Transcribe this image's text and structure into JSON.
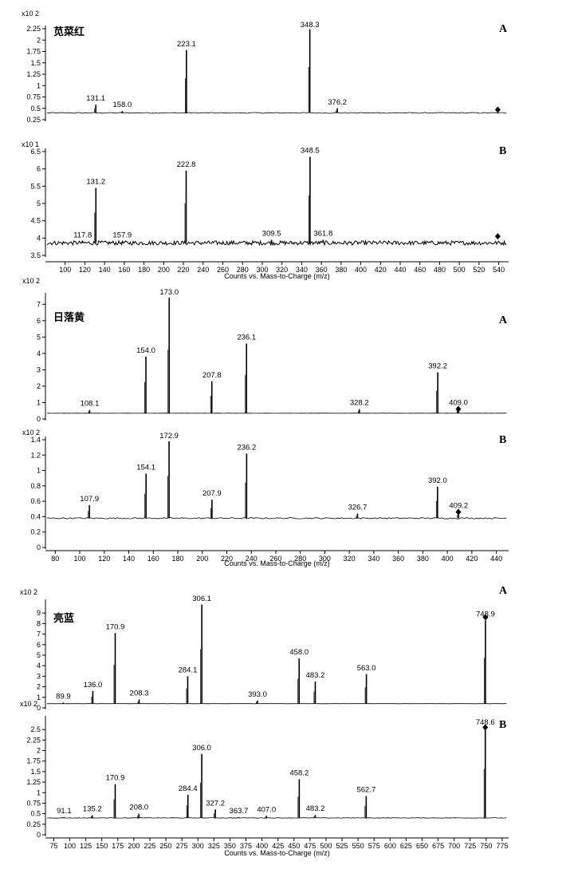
{
  "chart_data": [
    {
      "type": "bar",
      "compound": "苋菜红",
      "xlabel": "Counts vs. Mass-to-Charge (m/z)",
      "x_ticks": [
        100,
        120,
        140,
        160,
        180,
        200,
        220,
        240,
        260,
        280,
        300,
        320,
        340,
        360,
        380,
        400,
        420,
        440,
        460,
        480,
        500,
        520,
        540
      ],
      "xlim": [
        80,
        550
      ],
      "panels": [
        {
          "label": "A",
          "exponent_label": "x10 2",
          "ylim": [
            0.25,
            2.25
          ],
          "y_ticks": [
            "0.25",
            "0.5",
            "0.75",
            "1",
            "1.25",
            "1.5",
            "1.75",
            "2",
            "2.25"
          ],
          "baseline": 0.4,
          "noise": 0.01,
          "peaks": [
            {
              "mz": 131.1,
              "intensity": 0.58,
              "label": "131.1"
            },
            {
              "mz": 158.0,
              "intensity": 0.44,
              "label": "158.0"
            },
            {
              "mz": 223.1,
              "intensity": 1.78,
              "label": "223.1"
            },
            {
              "mz": 348.3,
              "intensity": 2.24,
              "label": "348.3"
            },
            {
              "mz": 376.2,
              "intensity": 0.5,
              "label": "376.2"
            }
          ],
          "marker": {
            "mz": 539,
            "intensity": 0.47
          }
        },
        {
          "label": "B",
          "exponent_label": "x10 1",
          "ylim": [
            3.5,
            6.5
          ],
          "y_ticks": [
            "3.5",
            "4",
            "4.5",
            "5",
            "5.5",
            "6",
            "6.5"
          ],
          "baseline": 3.86,
          "noise": 0.06,
          "peaks": [
            {
              "mz": 117.8,
              "intensity": 3.9,
              "label": "117.8"
            },
            {
              "mz": 131.2,
              "intensity": 5.45,
              "label": "131.2"
            },
            {
              "mz": 157.9,
              "intensity": 3.9,
              "label": "157.9"
            },
            {
              "mz": 222.8,
              "intensity": 5.95,
              "label": "222.8"
            },
            {
              "mz": 309.5,
              "intensity": 3.95,
              "label": "309.5"
            },
            {
              "mz": 348.5,
              "intensity": 6.35,
              "label": "348.5"
            },
            {
              "mz": 361.8,
              "intensity": 3.95,
              "label": "361.8"
            }
          ],
          "marker": {
            "mz": 539,
            "intensity": 4.05
          }
        }
      ]
    },
    {
      "type": "bar",
      "compound": "日落黄",
      "xlabel": "Counts vs. Mass-to-Charge (m/z)",
      "x_ticks": [
        80,
        100,
        120,
        140,
        160,
        180,
        200,
        220,
        240,
        260,
        280,
        300,
        320,
        340,
        360,
        380,
        400,
        420,
        440
      ],
      "xlim": [
        72,
        450
      ],
      "panels": [
        {
          "label": "A",
          "exponent_label": "x10 2",
          "ylim": [
            0,
            7.5
          ],
          "y_ticks": [
            "0",
            "1",
            "2",
            "3",
            "4",
            "5",
            "6",
            "7"
          ],
          "baseline": 0.35,
          "noise": 0.005,
          "peaks": [
            {
              "mz": 108.1,
              "intensity": 0.55,
              "label": "108.1"
            },
            {
              "mz": 154.0,
              "intensity": 3.8,
              "label": "154.0"
            },
            {
              "mz": 173.0,
              "intensity": 7.4,
              "label": "173.0"
            },
            {
              "mz": 207.8,
              "intensity": 2.3,
              "label": "207.8"
            },
            {
              "mz": 236.1,
              "intensity": 4.6,
              "label": "236.1"
            },
            {
              "mz": 328.2,
              "intensity": 0.6,
              "label": "328.2"
            },
            {
              "mz": 392.2,
              "intensity": 2.85,
              "label": "392.2"
            },
            {
              "mz": 409.0,
              "intensity": 0.6,
              "label": "409.0"
            }
          ],
          "marker": {
            "mz": 409,
            "intensity": 0.6
          }
        },
        {
          "label": "B",
          "exponent_label": "x10 2",
          "ylim": [
            0,
            1.4
          ],
          "y_ticks": [
            "0",
            "0.2",
            "0.4",
            "0.6",
            "0.8",
            "1",
            "1.2",
            "1.4"
          ],
          "baseline": 0.38,
          "noise": 0.008,
          "peaks": [
            {
              "mz": 107.9,
              "intensity": 0.55,
              "label": "107.9"
            },
            {
              "mz": 154.1,
              "intensity": 0.96,
              "label": "154.1"
            },
            {
              "mz": 172.9,
              "intensity": 1.38,
              "label": "172.9"
            },
            {
              "mz": 207.9,
              "intensity": 0.62,
              "label": "207.9"
            },
            {
              "mz": 236.2,
              "intensity": 1.22,
              "label": "236.2"
            },
            {
              "mz": 326.7,
              "intensity": 0.44,
              "label": "326.7"
            },
            {
              "mz": 392.0,
              "intensity": 0.79,
              "label": "392.0"
            },
            {
              "mz": 409.2,
              "intensity": 0.46,
              "label": "409.2"
            }
          ],
          "marker": {
            "mz": 409,
            "intensity": 0.46
          }
        }
      ]
    },
    {
      "type": "bar",
      "compound": "亮蓝",
      "xlabel": "Counts vs. Mass-to-Charge (m/z)",
      "x_ticks": [
        75,
        100,
        125,
        150,
        175,
        200,
        225,
        250,
        275,
        300,
        325,
        350,
        375,
        400,
        425,
        450,
        475,
        500,
        525,
        550,
        575,
        600,
        625,
        650,
        675,
        700,
        725,
        750,
        775
      ],
      "xlim": [
        62,
        785
      ],
      "panels": [
        {
          "label": "A",
          "exponent_label": "x10 2",
          "ylim": [
            0,
            10
          ],
          "y_ticks": [
            "0",
            "1",
            "2",
            "3",
            "4",
            "5",
            "6",
            "7",
            "8",
            "9"
          ],
          "baseline": 0.4,
          "noise": 0.005,
          "peaks": [
            {
              "mz": 89.9,
              "intensity": 0.5,
              "label": "89.9"
            },
            {
              "mz": 136.0,
              "intensity": 1.6,
              "label": "136.0"
            },
            {
              "mz": 170.9,
              "intensity": 7.1,
              "label": "170.9"
            },
            {
              "mz": 208.3,
              "intensity": 0.8,
              "label": "208.3"
            },
            {
              "mz": 284.1,
              "intensity": 3.0,
              "label": "284.1"
            },
            {
              "mz": 306.1,
              "intensity": 9.8,
              "label": "306.1"
            },
            {
              "mz": 393.0,
              "intensity": 0.7,
              "label": "393.0"
            },
            {
              "mz": 458.0,
              "intensity": 4.7,
              "label": "458.0"
            },
            {
              "mz": 483.2,
              "intensity": 2.5,
              "label": "483.2"
            },
            {
              "mz": 563.0,
              "intensity": 3.2,
              "label": "563.0"
            },
            {
              "mz": 748.9,
              "intensity": 8.3,
              "label": "748.9"
            }
          ],
          "marker": {
            "mz": 748.9,
            "intensity": 8.6
          }
        },
        {
          "label": "B",
          "exponent_label": "x10 2",
          "ylim": [
            0,
            2.75
          ],
          "y_ticks": [
            "0",
            "0.25",
            "0.5",
            "0.75",
            "1",
            "1.25",
            "1.5",
            "1.75",
            "2",
            "2.25",
            "2.5"
          ],
          "baseline": 0.4,
          "noise": 0.006,
          "peaks": [
            {
              "mz": 91.1,
              "intensity": 0.42,
              "label": "91.1"
            },
            {
              "mz": 135.2,
              "intensity": 0.46,
              "label": "135.2"
            },
            {
              "mz": 170.9,
              "intensity": 1.2,
              "label": "170.9"
            },
            {
              "mz": 208.0,
              "intensity": 0.5,
              "label": "208.0"
            },
            {
              "mz": 284.4,
              "intensity": 0.95,
              "label": "284.4"
            },
            {
              "mz": 306.0,
              "intensity": 1.92,
              "label": "306.0"
            },
            {
              "mz": 327.2,
              "intensity": 0.6,
              "label": "327.2"
            },
            {
              "mz": 363.7,
              "intensity": 0.42,
              "label": "363.7"
            },
            {
              "mz": 407.0,
              "intensity": 0.45,
              "label": "407.0"
            },
            {
              "mz": 458.2,
              "intensity": 1.32,
              "label": "458.2"
            },
            {
              "mz": 483.2,
              "intensity": 0.47,
              "label": "483.2"
            },
            {
              "mz": 562.7,
              "intensity": 0.92,
              "label": "562.7"
            },
            {
              "mz": 748.6,
              "intensity": 2.52,
              "label": "748.6"
            }
          ],
          "marker": {
            "mz": 748.6,
            "intensity": 2.55
          }
        }
      ]
    }
  ]
}
